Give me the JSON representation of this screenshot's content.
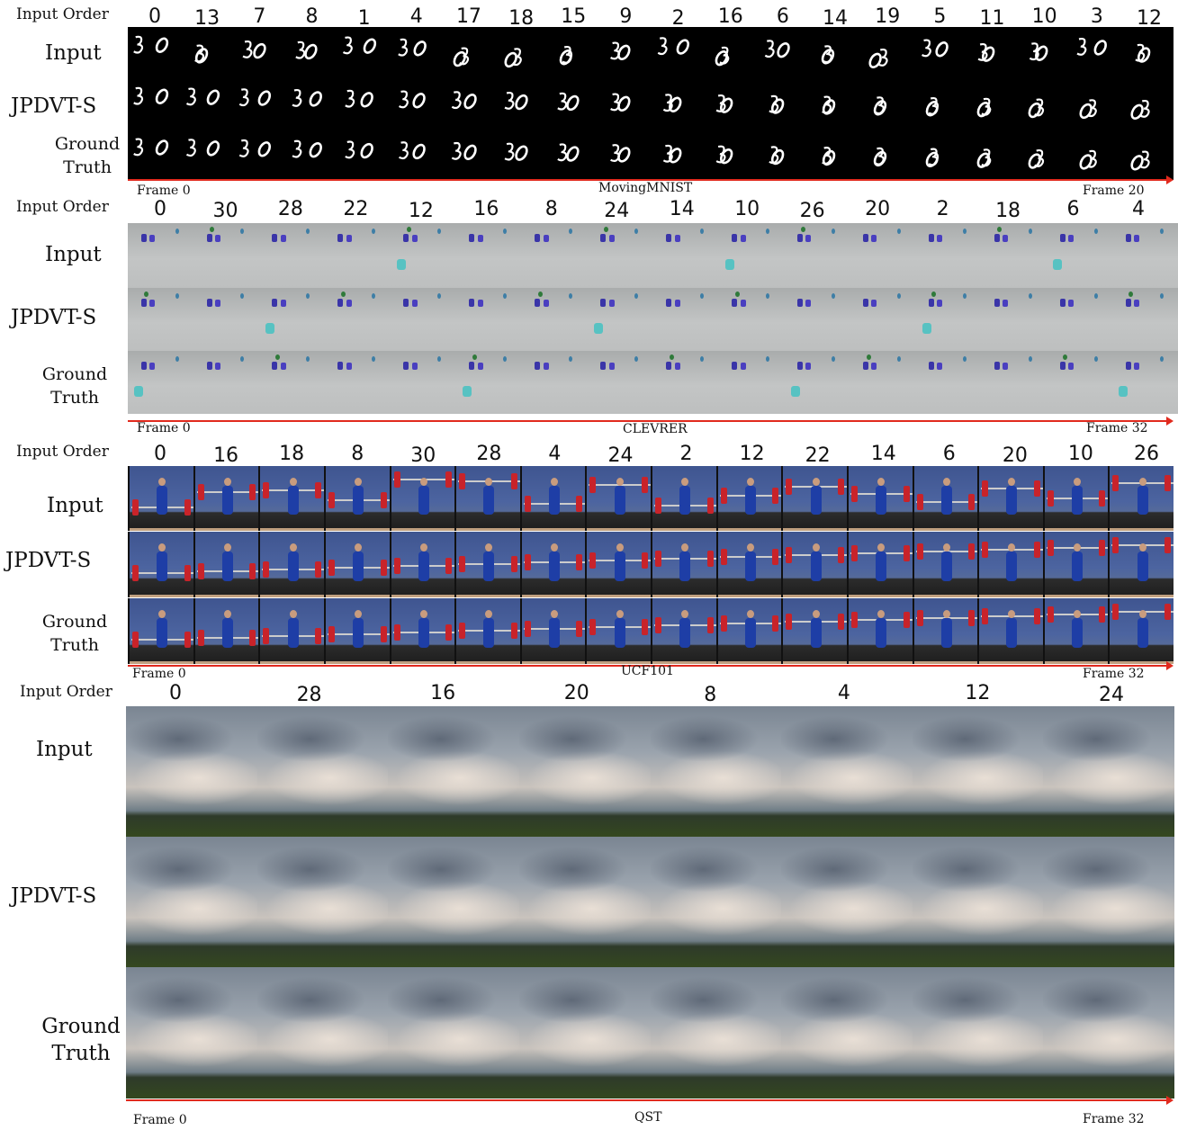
{
  "panels": [
    {
      "id": "movingmnist",
      "dataset": "MovingMNIST",
      "order_label": "Input Order",
      "input_order": [
        "0",
        "13",
        "7",
        "8",
        "1",
        "4",
        "17",
        "18",
        "15",
        "9",
        "2",
        "16",
        "6",
        "14",
        "19",
        "5",
        "11",
        "10",
        "3",
        "12"
      ],
      "rows": [
        "Input",
        "JPDVT-S",
        "Ground Truth"
      ],
      "row_labels": {
        "input": "Input",
        "model": "JPDVT-S",
        "gt_line1": "Ground",
        "gt_line2": "Truth"
      },
      "frame_start": "Frame 0",
      "frame_end": "Frame 20"
    },
    {
      "id": "clevrer",
      "dataset": "CLEVRER",
      "order_label": "Input Order",
      "input_order": [
        "0",
        "30",
        "28",
        "22",
        "12",
        "16",
        "8",
        "24",
        "14",
        "10",
        "26",
        "20",
        "2",
        "18",
        "6",
        "4"
      ],
      "row_labels": {
        "input": "Input",
        "model": "JPDVT-S",
        "gt_line1": "Ground",
        "gt_line2": "Truth"
      },
      "frame_start": "Frame 0",
      "frame_end": "Frame 32"
    },
    {
      "id": "ucf101",
      "dataset": "UCF101",
      "order_label": "Input Order",
      "input_order": [
        "0",
        "16",
        "18",
        "8",
        "30",
        "28",
        "4",
        "24",
        "2",
        "12",
        "22",
        "14",
        "6",
        "20",
        "10",
        "26"
      ],
      "row_labels": {
        "input": "Input",
        "model": "JPDVT-S",
        "gt_line1": "Ground",
        "gt_line2": "Truth"
      },
      "frame_start": "Frame 0",
      "frame_end": "Frame 32"
    },
    {
      "id": "qst",
      "dataset": "QST",
      "order_label": "Input Order",
      "input_order": [
        "0",
        "28",
        "16",
        "20",
        "8",
        "4",
        "12",
        "24"
      ],
      "row_labels": {
        "input": "Input",
        "model": "JPDVT-S",
        "gt_line1": "Ground",
        "gt_line2": "Truth"
      },
      "frame_start": "Frame 0",
      "frame_end": "Frame 32"
    }
  ],
  "colors": {
    "arrow": "#e12a1e",
    "mnist_bg": "#000000",
    "clevrer_bg": "#b9bbbb",
    "ucf_bg": "#3c4f86",
    "qst_sky": "#8e97a2",
    "qst_grass": "#2f4420"
  }
}
